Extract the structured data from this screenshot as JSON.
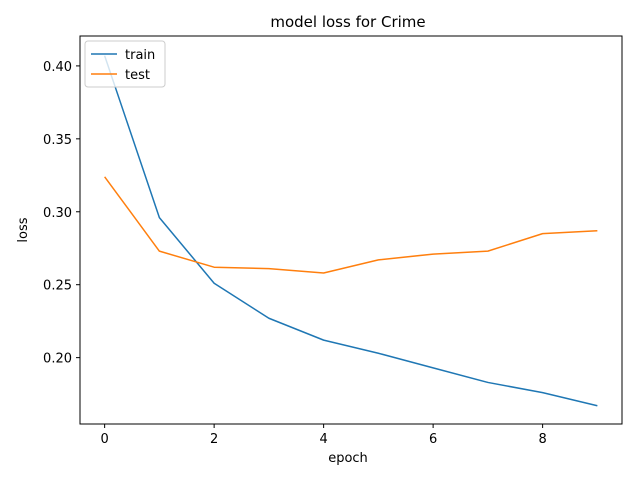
{
  "chart_data": {
    "type": "line",
    "title": "model loss for Crime",
    "xlabel": "epoch",
    "ylabel": "loss",
    "x": [
      0,
      1,
      2,
      3,
      4,
      5,
      6,
      7,
      8,
      9
    ],
    "xlim": [
      -0.45,
      9.45
    ],
    "ylim": [
      0.1545,
      0.4205
    ],
    "xticks": [
      0,
      2,
      4,
      6,
      8
    ],
    "yticks": [
      0.2,
      0.25,
      0.3,
      0.35,
      0.4
    ],
    "xtick_labels": [
      "0",
      "2",
      "4",
      "6",
      "8"
    ],
    "ytick_labels": [
      "0.20",
      "0.25",
      "0.30",
      "0.35",
      "0.40"
    ],
    "grid": false,
    "legend_position": "upper left",
    "series": [
      {
        "name": "train",
        "color": "#1f77b4",
        "values": [
          0.407,
          0.296,
          0.251,
          0.227,
          0.212,
          0.203,
          0.193,
          0.183,
          0.176,
          0.167
        ]
      },
      {
        "name": "test",
        "color": "#ff7f0e",
        "values": [
          0.324,
          0.273,
          0.262,
          0.261,
          0.258,
          0.267,
          0.271,
          0.273,
          0.285,
          0.287
        ]
      }
    ]
  }
}
